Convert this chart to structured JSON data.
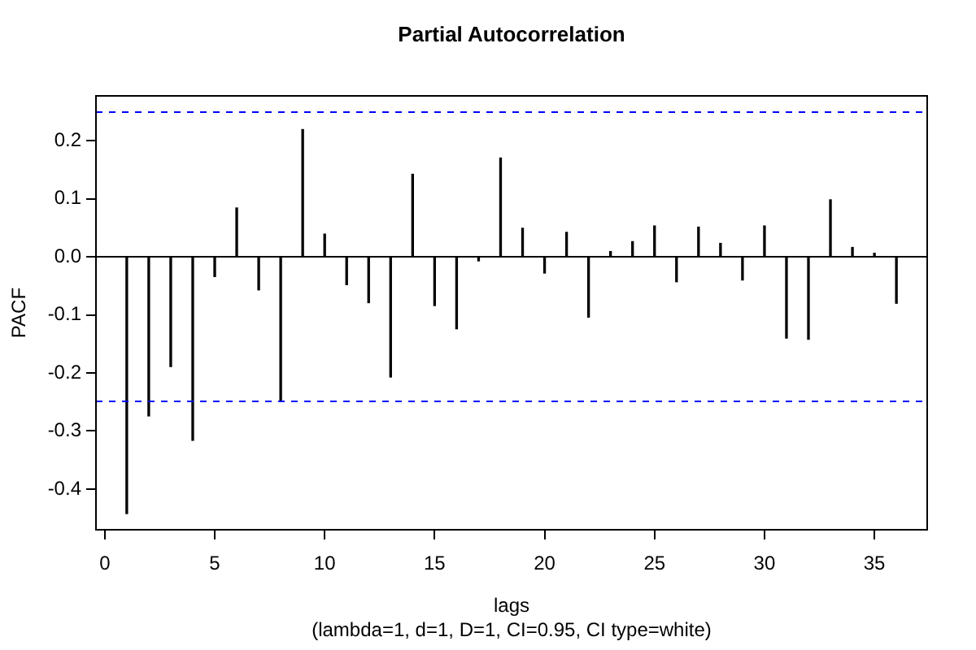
{
  "chart_data": {
    "type": "bar",
    "title": "Partial Autocorrelation",
    "xlabel": "lags",
    "ylabel": "PACF",
    "annotations": [
      "(lambda=1, d=1, D=1, CI=0.95, CI type=white)"
    ],
    "x": [
      1,
      2,
      3,
      4,
      5,
      6,
      7,
      8,
      9,
      10,
      11,
      12,
      13,
      14,
      15,
      16,
      17,
      18,
      19,
      20,
      21,
      22,
      23,
      24,
      25,
      26,
      27,
      28,
      29,
      30,
      31,
      32,
      33,
      34,
      35,
      36
    ],
    "values": [
      -0.442,
      -0.274,
      -0.189,
      -0.316,
      -0.034,
      0.084,
      -0.057,
      -0.247,
      0.219,
      0.039,
      -0.048,
      -0.079,
      -0.207,
      0.142,
      -0.084,
      -0.124,
      -0.007,
      0.17,
      0.049,
      -0.028,
      0.042,
      -0.104,
      0.009,
      0.026,
      0.053,
      -0.043,
      0.051,
      0.023,
      -0.04,
      0.053,
      -0.14,
      -0.142,
      0.098,
      0.016,
      0.006,
      -0.08
    ],
    "color": "#000000",
    "xlim": [
      -0.4,
      37.4
    ],
    "xticks": [
      0,
      5,
      10,
      15,
      20,
      25,
      30,
      35
    ],
    "ylim": [
      -0.47,
      0.277
    ],
    "yticks": [
      -0.4,
      -0.3,
      -0.2,
      -0.1,
      {
        "value": 0,
        "label": "0.0"
      },
      0.1,
      0.2
    ],
    "ref_lines": [
      {
        "axis": "y",
        "value": 0.249,
        "color": "#0000ff",
        "line_style": "dashed"
      },
      {
        "axis": "y",
        "value": -0.249,
        "color": "#0000ff",
        "line_style": "dashed"
      },
      {
        "axis": "y",
        "value": 0,
        "color": "#000000",
        "line_style": "solid"
      }
    ],
    "grid": false,
    "legend": false
  }
}
